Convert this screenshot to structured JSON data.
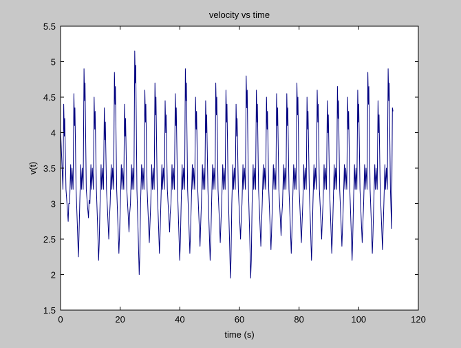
{
  "chart_data": {
    "type": "line",
    "title": "velocity vs time",
    "xlabel": "time (s)",
    "ylabel": "v(t)",
    "xlim": [
      0,
      120
    ],
    "ylim": [
      1.5,
      5.5
    ],
    "xticks": [
      0,
      20,
      40,
      60,
      80,
      100,
      120
    ],
    "xtick_labels": [
      "0",
      "20",
      "40",
      "60",
      "80",
      "100",
      "120"
    ],
    "yticks": [
      1.5,
      2,
      2.5,
      3,
      3.5,
      4,
      4.5,
      5,
      5.5
    ],
    "ytick_labels": [
      "1.5",
      "2",
      "2.5",
      "3",
      "3.5",
      "4",
      "4.5",
      "5",
      "5.5"
    ],
    "grid": false,
    "series": [
      {
        "color": "#000080",
        "x_range": [
          0,
          111.5
        ],
        "cycle_period": 3.4,
        "cycle_peaks": [
          4.4,
          4.55,
          4.9,
          4.5,
          4.35,
          4.85,
          4.4,
          5.15,
          4.6,
          4.7,
          4.45,
          4.55,
          4.9,
          4.5,
          4.45,
          4.7,
          4.6,
          4.4,
          4.8,
          4.6,
          4.5,
          4.55,
          4.55,
          4.7,
          4.5,
          4.6,
          4.45,
          4.65,
          4.5,
          4.6,
          4.85,
          4.45,
          4.9
        ],
        "cycle_troughs": [
          2.75,
          2.25,
          2.8,
          2.2,
          2.5,
          2.3,
          2.6,
          2.0,
          2.45,
          2.3,
          2.6,
          2.2,
          2.3,
          2.4,
          2.2,
          2.45,
          1.95,
          2.5,
          1.95,
          2.4,
          2.35,
          2.55,
          2.3,
          2.45,
          2.2,
          2.5,
          2.3,
          2.4,
          2.2,
          2.45,
          2.3,
          2.35,
          2.15
        ],
        "cycle_mid": 3.45,
        "end_value": 4.3
      }
    ]
  }
}
